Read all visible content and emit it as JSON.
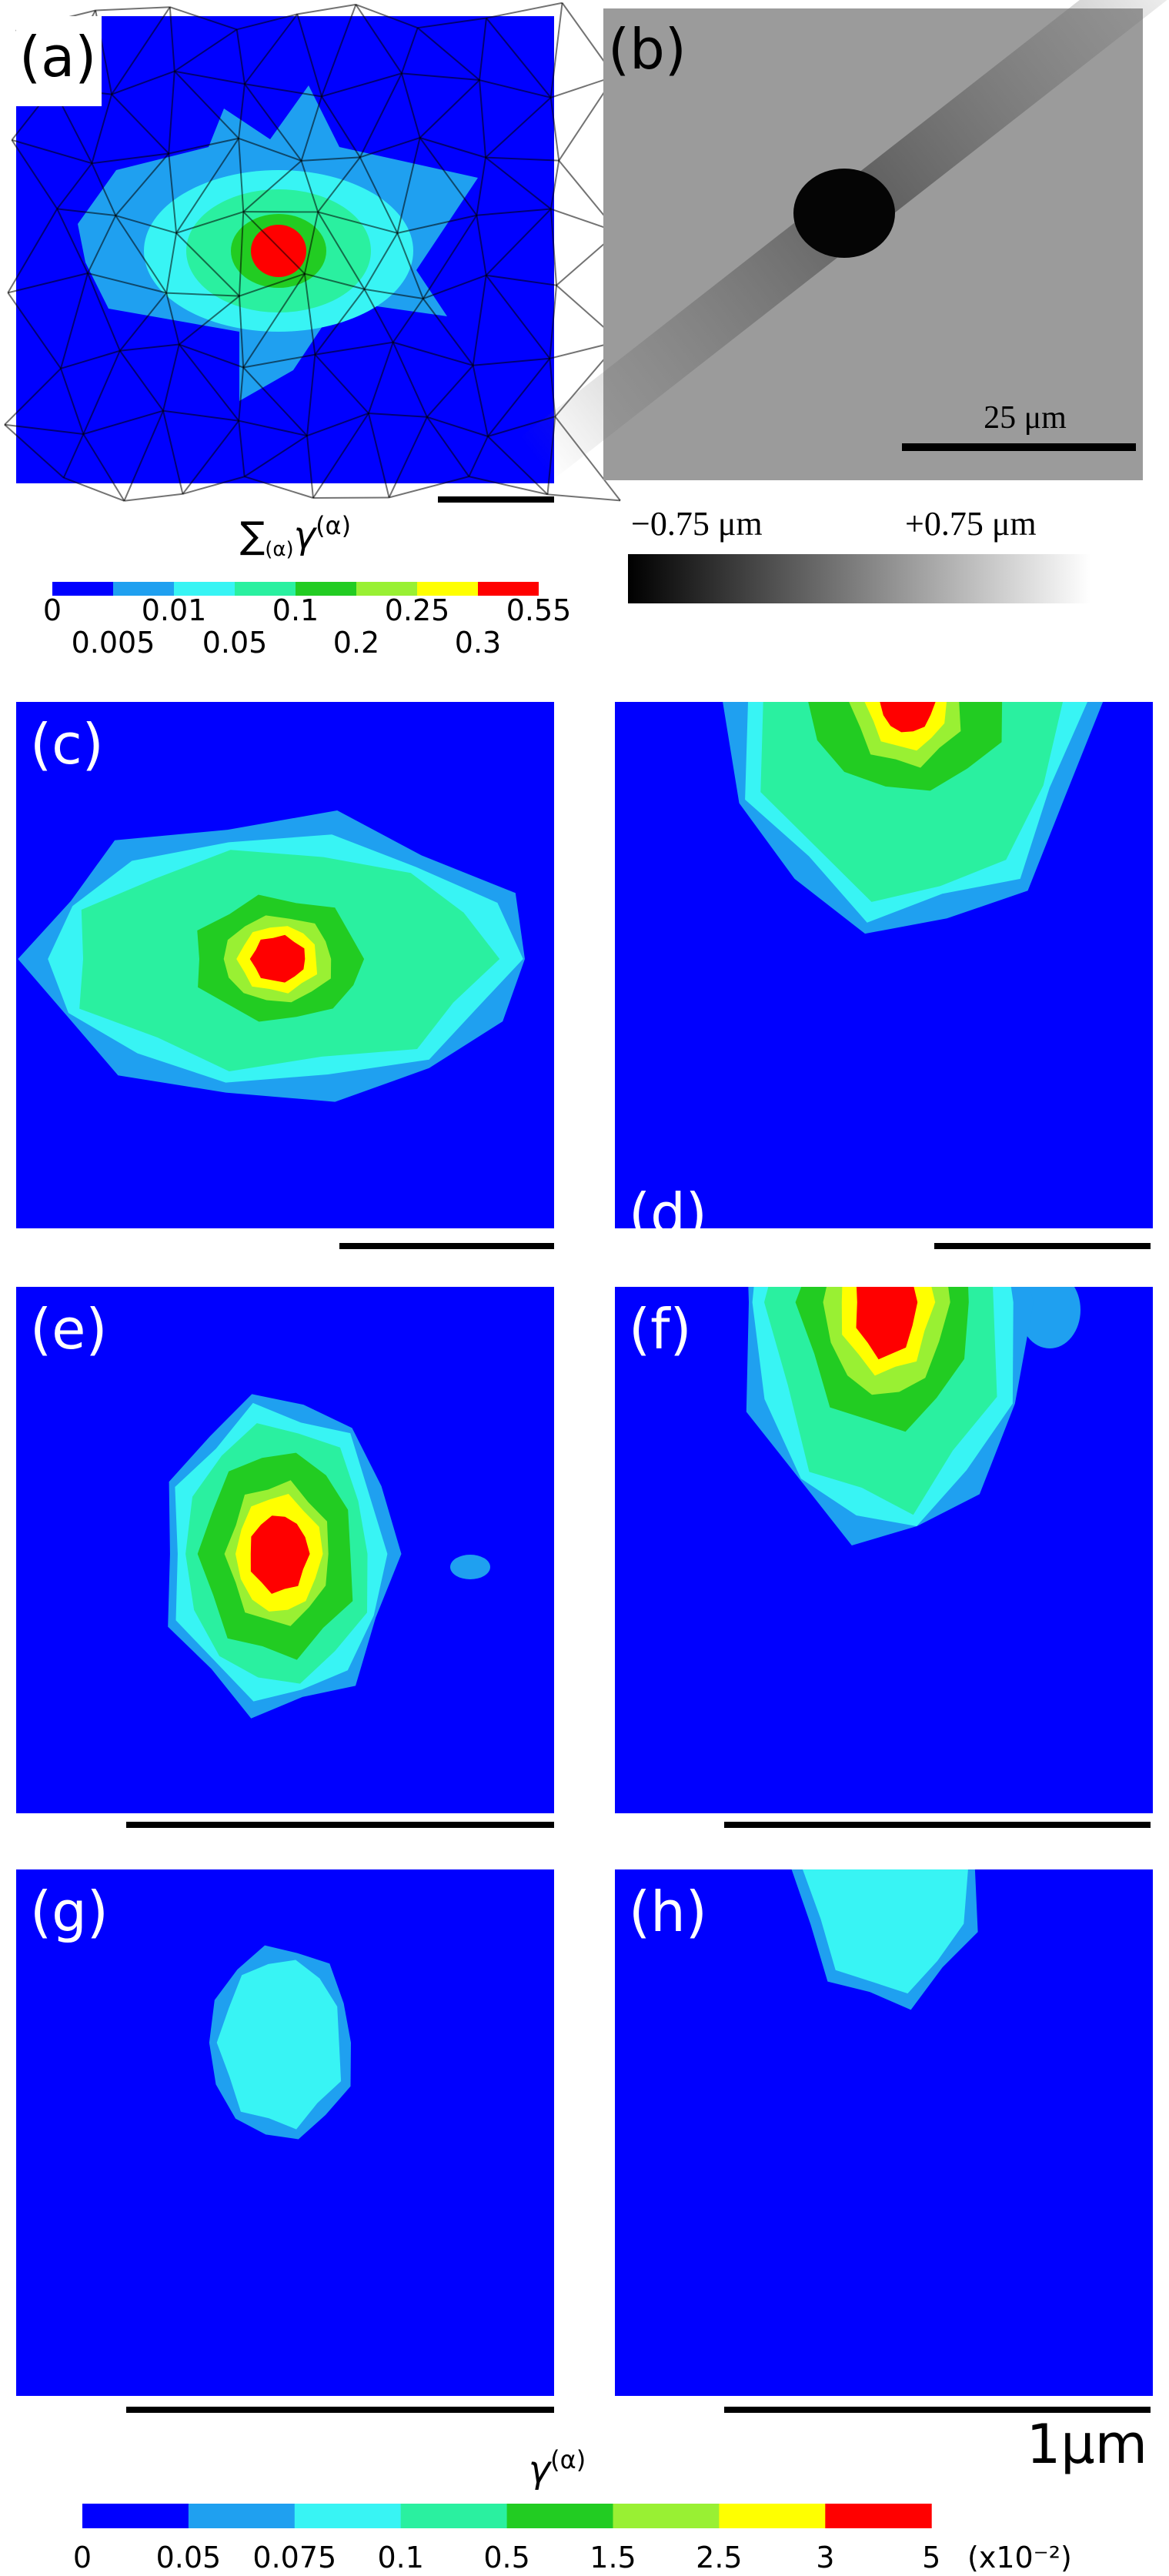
{
  "figure": {
    "panel_labels": [
      "(a)",
      "(b)",
      "(c)",
      "(d)",
      "(e)",
      "(f)",
      "(g)",
      "(h)"
    ],
    "colorbar_a": {
      "title": {
        "symbol": "∑",
        "subscript": "(α)",
        "main": "γ",
        "superscript": "(α)"
      },
      "ticks_top": [
        "0",
        "0.01",
        "0.1",
        "0.25",
        "0.55"
      ],
      "ticks_bottom": [
        "0.005",
        "0.05",
        "0.2",
        "0.3"
      ]
    },
    "panel_b": {
      "scale_label": "25 μm",
      "height_min": "−0.75 μm",
      "height_max": "+0.75 μm"
    },
    "colorbar_main": {
      "title": {
        "main": "γ",
        "superscript": "(α)"
      },
      "ticks": [
        "0",
        "0.05",
        "0.075",
        "0.1",
        "0.5",
        "1.5",
        "2.5",
        "3",
        "5"
      ],
      "multiplier": "(x10⁻²)"
    },
    "scale_label": "1μm"
  }
}
